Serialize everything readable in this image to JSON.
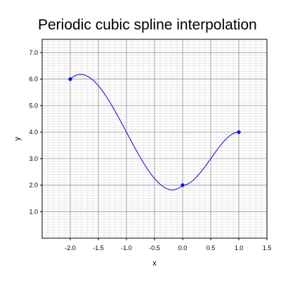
{
  "chart_data": {
    "type": "line",
    "title": "Periodic cubic spline interpolation",
    "xlabel": "x",
    "ylabel": "y",
    "xlim": [
      -2.5,
      1.5
    ],
    "ylim": [
      0.0,
      7.5
    ],
    "x_ticks": [
      -2.0,
      -1.5,
      -1.0,
      -0.5,
      0.0,
      0.5,
      1.0,
      1.5
    ],
    "x_tick_labels": [
      "-2.0",
      "-1.5",
      "-1.0",
      "-0.5",
      "0.0",
      "0.5",
      "1.0",
      "1.5"
    ],
    "y_ticks": [
      1.0,
      2.0,
      3.0,
      4.0,
      5.0,
      6.0,
      7.0
    ],
    "y_tick_labels": [
      "1.0",
      "2.0",
      "3.0",
      "4.0",
      "5.0",
      "6.0",
      "7.0"
    ],
    "grid": true,
    "minor_grid": true,
    "boundary_condition": "periodic",
    "series": [
      {
        "kind": "knots",
        "x": [
          -2.0,
          0.0,
          1.0
        ],
        "y": [
          6.0,
          2.0,
          4.0
        ]
      },
      {
        "kind": "spline",
        "method": "periodic-cubic-spline"
      }
    ],
    "colors": {
      "curve": "#0000ff",
      "knots": "#0000ff",
      "major_grid": "#888888",
      "minor_grid": "#dddddd",
      "frame": "#000000"
    }
  }
}
